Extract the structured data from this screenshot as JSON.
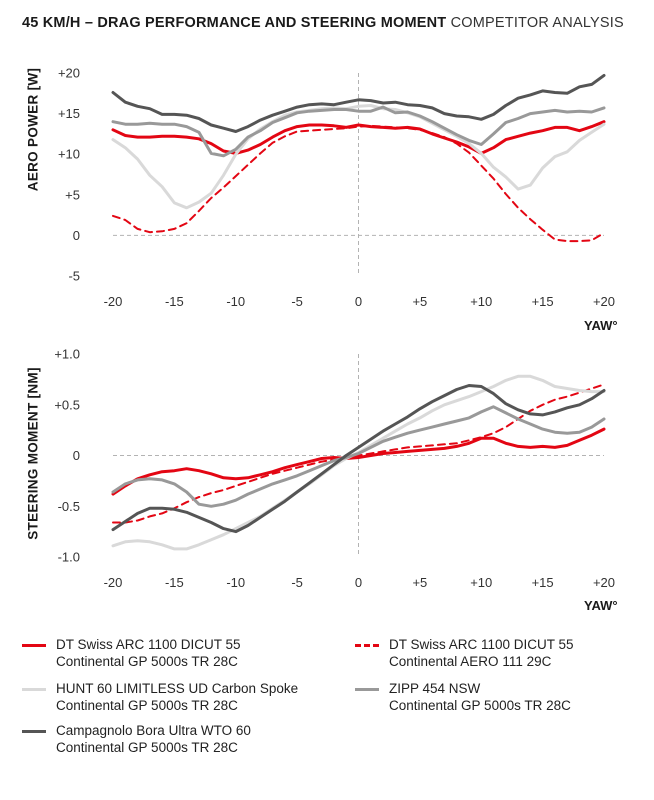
{
  "title": {
    "bold": "45 KM/H – DRAG PERFORMANCE AND STEERING MOMENT",
    "light": "COMPETITOR ANALYSIS"
  },
  "chart_data": [
    {
      "type": "line",
      "ylabel": "AERO POWER [W]",
      "xlabel": "YAW°",
      "xlim": [
        -20,
        20
      ],
      "ylim": [
        -5,
        20
      ],
      "xticks": [
        "-20",
        "-15",
        "-10",
        "-5",
        "0",
        "+5",
        "+10",
        "+15",
        "+20"
      ],
      "yticks": [
        "+20",
        "+15",
        "+10",
        "+5",
        "0",
        "-5"
      ],
      "grid": false,
      "reference_lines": {
        "x": 0,
        "y": 0
      },
      "x": [
        -20,
        -19,
        -18,
        -17,
        -16,
        -15,
        -14,
        -13,
        -12,
        -11,
        -10,
        -9,
        -8,
        -7,
        -6,
        -5,
        -4,
        -3,
        -2,
        -1,
        0,
        1,
        2,
        3,
        4,
        5,
        6,
        7,
        8,
        9,
        10,
        11,
        12,
        13,
        14,
        15,
        16,
        17,
        18,
        19,
        20
      ],
      "series": [
        {
          "name": "DT Swiss ARC 1100 DICUT 55 Continental GP 5000s TR 28C",
          "color": "#e30613",
          "style": "solid",
          "width": 3,
          "values": [
            13.0,
            12.3,
            12.1,
            12.1,
            12.2,
            12.2,
            12.1,
            11.9,
            11.3,
            10.4,
            10.1,
            10.5,
            11.2,
            12.1,
            12.9,
            13.4,
            13.6,
            13.6,
            13.5,
            13.3,
            13.6,
            13.4,
            13.3,
            13.2,
            13.3,
            13.1,
            12.5,
            12.0,
            11.5,
            10.9,
            10.1,
            10.8,
            11.8,
            12.2,
            12.6,
            12.9,
            13.3,
            13.3,
            12.9,
            13.4,
            14.0
          ]
        },
        {
          "name": "DT Swiss ARC 1100 DICUT 55 Continental AERO 111 29C",
          "color": "#e30613",
          "style": "dashed",
          "width": 2,
          "values": [
            2.4,
            1.9,
            0.8,
            0.4,
            0.5,
            0.8,
            1.5,
            3.0,
            4.6,
            5.9,
            7.3,
            8.7,
            10.1,
            11.4,
            12.2,
            12.8,
            12.9,
            13.0,
            13.1,
            13.2,
            13.4,
            13.5,
            13.4,
            13.3,
            13.2,
            13.0,
            12.6,
            12.1,
            11.3,
            10.2,
            8.6,
            7.0,
            5.1,
            3.4,
            2.0,
            0.7,
            -0.5,
            -0.7,
            -0.7,
            -0.6,
            0.3
          ]
        },
        {
          "name": "HUNT 60 LIMITLESS UD Carbon Spoke Continental GP 5000s TR 28C",
          "color": "#d9d9d9",
          "style": "solid",
          "width": 3,
          "values": [
            11.8,
            10.8,
            9.4,
            7.4,
            6.0,
            4.0,
            3.4,
            4.1,
            5.2,
            7.4,
            10.0,
            11.9,
            13.1,
            14.0,
            14.8,
            15.2,
            15.4,
            15.6,
            15.7,
            15.6,
            15.9,
            16.0,
            15.6,
            15.5,
            15.1,
            14.6,
            13.8,
            13.0,
            12.2,
            11.3,
            10.1,
            8.4,
            7.2,
            5.7,
            6.2,
            8.3,
            9.7,
            10.3,
            11.7,
            12.7,
            13.7
          ]
        },
        {
          "name": "ZIPP 454 NSW Continental GP 5000s TR 28C",
          "color": "#999999",
          "style": "solid",
          "width": 3,
          "values": [
            14.0,
            13.7,
            13.7,
            13.8,
            13.7,
            13.7,
            13.4,
            12.7,
            10.1,
            9.8,
            10.6,
            12.1,
            12.9,
            13.9,
            14.5,
            15.1,
            15.3,
            15.4,
            15.5,
            15.5,
            15.3,
            15.3,
            15.8,
            15.1,
            15.2,
            14.7,
            14.0,
            13.2,
            12.4,
            11.7,
            11.2,
            12.5,
            13.9,
            14.4,
            15.0,
            15.2,
            15.4,
            15.2,
            15.3,
            15.2,
            15.7
          ]
        },
        {
          "name": "Campagnolo Bora Ultra WTO 60 Continental GP 5000s TR 28C",
          "color": "#555555",
          "style": "solid",
          "width": 3,
          "values": [
            17.6,
            16.4,
            15.9,
            15.6,
            14.9,
            14.9,
            14.8,
            14.4,
            13.6,
            13.2,
            12.8,
            13.4,
            14.2,
            14.8,
            15.3,
            15.8,
            16.1,
            16.2,
            16.1,
            16.4,
            16.7,
            16.6,
            16.3,
            16.4,
            16.1,
            16.0,
            15.7,
            15.0,
            14.7,
            14.6,
            14.3,
            14.9,
            16.0,
            16.9,
            17.3,
            17.8,
            17.6,
            17.5,
            18.3,
            18.6,
            19.7
          ]
        }
      ]
    },
    {
      "type": "line",
      "ylabel": "STEERING MOMENT [NM]",
      "xlabel": "YAW°",
      "xlim": [
        -20,
        20
      ],
      "ylim": [
        -1.0,
        1.0
      ],
      "xticks": [
        "-20",
        "-15",
        "-10",
        "-5",
        "0",
        "+5",
        "+10",
        "+15",
        "+20"
      ],
      "yticks": [
        "+1.0",
        "+0.5",
        "0",
        "-0.5",
        "-1.0"
      ],
      "grid": false,
      "reference_lines": {
        "x": 0,
        "y": 0
      },
      "x": [
        -20,
        -19,
        -18,
        -17,
        -16,
        -15,
        -14,
        -13,
        -12,
        -11,
        -10,
        -9,
        -8,
        -7,
        -6,
        -5,
        -4,
        -3,
        -2,
        -1,
        0,
        1,
        2,
        3,
        4,
        5,
        6,
        7,
        8,
        9,
        10,
        11,
        12,
        13,
        14,
        15,
        16,
        17,
        18,
        19,
        20
      ],
      "series": [
        {
          "name": "DT Swiss ARC 1100 DICUT 55 Continental GP 5000s TR 28C",
          "color": "#e30613",
          "style": "solid",
          "width": 3,
          "values": [
            -0.38,
            -0.3,
            -0.23,
            -0.19,
            -0.16,
            -0.15,
            -0.13,
            -0.15,
            -0.18,
            -0.22,
            -0.23,
            -0.22,
            -0.19,
            -0.16,
            -0.12,
            -0.09,
            -0.06,
            -0.03,
            -0.02,
            -0.03,
            -0.02,
            0.0,
            0.02,
            0.03,
            0.04,
            0.05,
            0.06,
            0.07,
            0.09,
            0.12,
            0.17,
            0.17,
            0.12,
            0.09,
            0.08,
            0.09,
            0.08,
            0.1,
            0.15,
            0.2,
            0.26
          ]
        },
        {
          "name": "DT Swiss ARC 1100 DICUT 55 Continental AERO 111 29C",
          "color": "#e30613",
          "style": "dashed",
          "width": 2,
          "values": [
            -0.66,
            -0.66,
            -0.64,
            -0.6,
            -0.57,
            -0.52,
            -0.46,
            -0.41,
            -0.37,
            -0.34,
            -0.3,
            -0.26,
            -0.22,
            -0.18,
            -0.15,
            -0.12,
            -0.09,
            -0.06,
            -0.04,
            -0.02,
            0.0,
            0.02,
            0.04,
            0.06,
            0.08,
            0.09,
            0.1,
            0.11,
            0.12,
            0.15,
            0.18,
            0.22,
            0.28,
            0.36,
            0.44,
            0.5,
            0.55,
            0.58,
            0.62,
            0.66,
            0.7
          ]
        },
        {
          "name": "HUNT 60 LIMITLESS UD Carbon Spoke Continental GP 5000s TR 28C",
          "color": "#d9d9d9",
          "style": "solid",
          "width": 3,
          "values": [
            -0.89,
            -0.85,
            -0.84,
            -0.85,
            -0.88,
            -0.92,
            -0.92,
            -0.88,
            -0.83,
            -0.78,
            -0.72,
            -0.66,
            -0.6,
            -0.52,
            -0.44,
            -0.36,
            -0.28,
            -0.19,
            -0.1,
            -0.03,
            0.03,
            0.1,
            0.17,
            0.24,
            0.31,
            0.37,
            0.44,
            0.5,
            0.54,
            0.58,
            0.63,
            0.68,
            0.74,
            0.78,
            0.78,
            0.74,
            0.68,
            0.66,
            0.64,
            0.63,
            0.63
          ]
        },
        {
          "name": "ZIPP 454 NSW Continental GP 5000s TR 28C",
          "color": "#999999",
          "style": "solid",
          "width": 3,
          "values": [
            -0.36,
            -0.28,
            -0.24,
            -0.23,
            -0.24,
            -0.28,
            -0.36,
            -0.48,
            -0.5,
            -0.48,
            -0.44,
            -0.38,
            -0.33,
            -0.28,
            -0.24,
            -0.2,
            -0.15,
            -0.1,
            -0.05,
            -0.02,
            0.02,
            0.08,
            0.14,
            0.18,
            0.22,
            0.25,
            0.28,
            0.31,
            0.34,
            0.37,
            0.43,
            0.48,
            0.42,
            0.36,
            0.31,
            0.26,
            0.23,
            0.22,
            0.23,
            0.28,
            0.36
          ]
        },
        {
          "name": "Campagnolo Bora Ultra WTO 60 Continental GP 5000s TR 28C",
          "color": "#555555",
          "style": "solid",
          "width": 3,
          "values": [
            -0.73,
            -0.65,
            -0.57,
            -0.52,
            -0.52,
            -0.53,
            -0.56,
            -0.61,
            -0.66,
            -0.72,
            -0.75,
            -0.69,
            -0.61,
            -0.53,
            -0.45,
            -0.36,
            -0.27,
            -0.18,
            -0.09,
            0.0,
            0.08,
            0.16,
            0.24,
            0.31,
            0.38,
            0.46,
            0.53,
            0.59,
            0.65,
            0.69,
            0.68,
            0.61,
            0.51,
            0.45,
            0.41,
            0.4,
            0.43,
            0.47,
            0.5,
            0.56,
            0.64
          ]
        }
      ]
    }
  ],
  "legend": [
    {
      "line1": "DT Swiss ARC 1100 DICUT 55",
      "line2": "Continental GP 5000s TR 28C",
      "color": "#e30613",
      "style": "solid"
    },
    {
      "line1": "DT Swiss ARC 1100 DICUT 55",
      "line2": "Continental AERO 111 29C",
      "color": "#e30613",
      "style": "dashed"
    },
    {
      "line1": "HUNT 60 LIMITLESS UD Carbon Spoke",
      "line2": "Continental GP 5000s TR 28C",
      "color": "#d9d9d9",
      "style": "solid"
    },
    {
      "line1": "ZIPP 454 NSW",
      "line2": "Continental GP 5000s TR 28C",
      "color": "#999999",
      "style": "solid"
    },
    {
      "line1": "Campagnolo Bora Ultra WTO 60",
      "line2": "Continental GP 5000s TR 28C",
      "color": "#555555",
      "style": "solid"
    }
  ]
}
